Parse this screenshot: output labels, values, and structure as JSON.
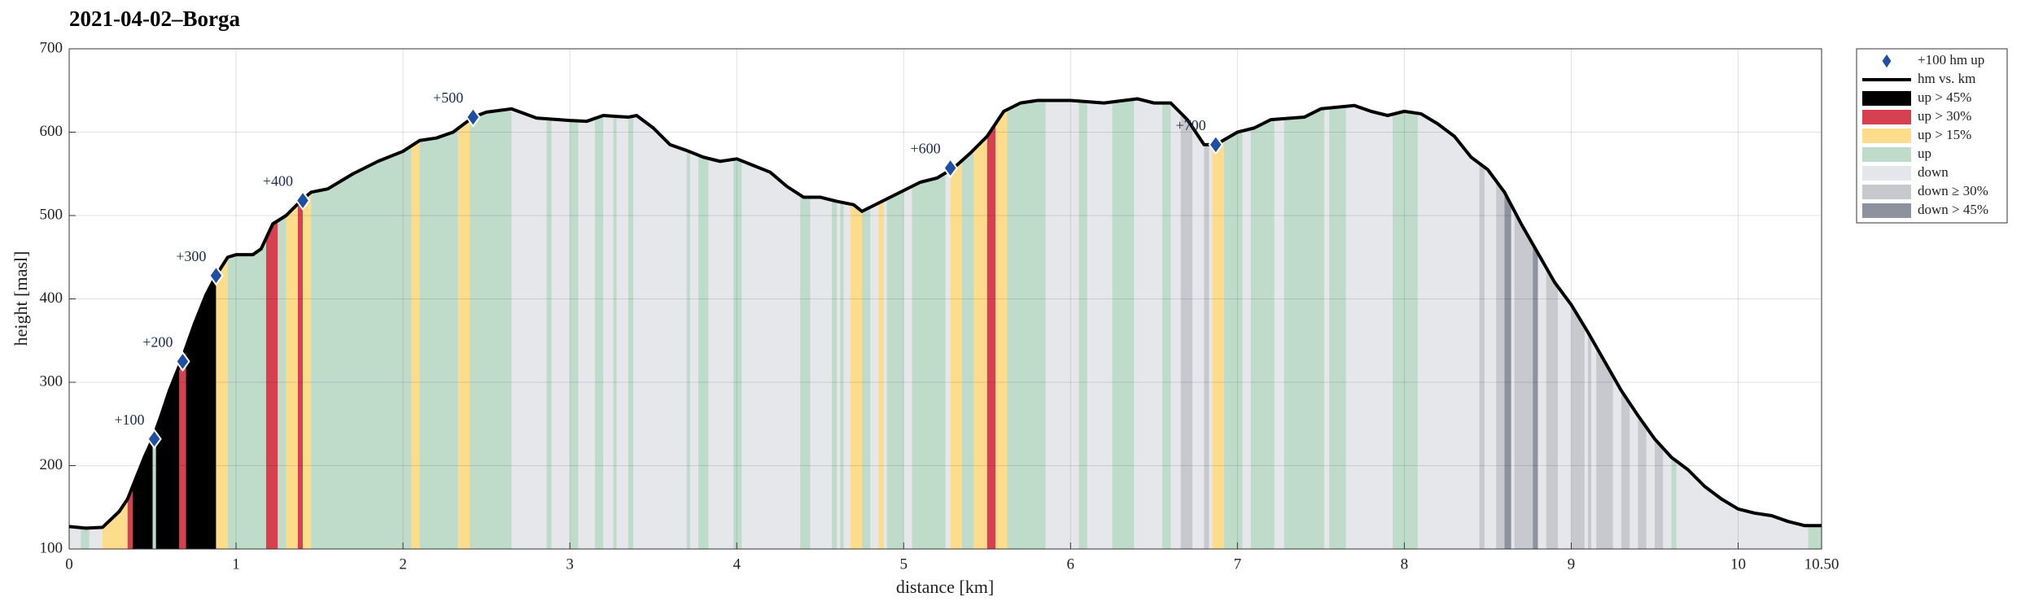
{
  "chart_data": {
    "type": "area",
    "title": "2021-04-02–Borga",
    "xlabel": "distance [km]",
    "ylabel": "height [masl]",
    "x": [
      0,
      0.1,
      0.2,
      0.3,
      0.35,
      0.4,
      0.45,
      0.5,
      0.55,
      0.6,
      0.67,
      0.75,
      0.82,
      0.88,
      0.95,
      1.0,
      1.1,
      1.15,
      1.22,
      1.3,
      1.39,
      1.45,
      1.55,
      1.7,
      1.85,
      2.0,
      2.1,
      2.2,
      2.3,
      2.42,
      2.5,
      2.65,
      2.8,
      3.0,
      3.1,
      3.2,
      3.35,
      3.4,
      3.5,
      3.6,
      3.7,
      3.8,
      3.9,
      4.0,
      4.1,
      4.2,
      4.3,
      4.4,
      4.5,
      4.6,
      4.7,
      4.75,
      4.85,
      5.0,
      5.1,
      5.2,
      5.3,
      5.4,
      5.5,
      5.6,
      5.7,
      5.8,
      6.0,
      6.2,
      6.4,
      6.5,
      6.6,
      6.7,
      6.8,
      6.87,
      7.0,
      7.1,
      7.2,
      7.4,
      7.5,
      7.7,
      7.8,
      7.9,
      8.0,
      8.1,
      8.2,
      8.3,
      8.4,
      8.5,
      8.6,
      8.7,
      8.8,
      8.9,
      9.0,
      9.1,
      9.2,
      9.3,
      9.4,
      9.5,
      9.6,
      9.7,
      9.8,
      9.9,
      10.0,
      10.1,
      10.2,
      10.3,
      10.4,
      10.5
    ],
    "series": [
      {
        "name": "hm vs. km",
        "color": "#000000",
        "values": [
          127,
          125,
          126,
          145,
          160,
          185,
          210,
          232,
          260,
          290,
          325,
          370,
          405,
          428,
          450,
          453,
          453,
          460,
          490,
          500,
          518,
          528,
          532,
          550,
          565,
          577,
          590,
          593,
          600,
          618,
          624,
          628,
          617,
          614,
          613,
          620,
          618,
          620,
          605,
          585,
          578,
          570,
          565,
          568,
          560,
          552,
          535,
          522,
          522,
          517,
          513,
          505,
          515,
          530,
          540,
          545,
          557,
          575,
          595,
          625,
          635,
          638,
          638,
          635,
          640,
          635,
          635,
          615,
          585,
          585,
          600,
          605,
          615,
          618,
          628,
          632,
          625,
          620,
          625,
          622,
          610,
          595,
          570,
          555,
          528,
          490,
          455,
          420,
          393,
          360,
          325,
          290,
          260,
          232,
          210,
          195,
          175,
          160,
          148,
          143,
          140,
          133,
          128,
          128
        ]
      }
    ],
    "markers": {
      "name": "+100 hm up",
      "color": "#1f4fa0",
      "x": [
        0.51,
        0.68,
        0.88,
        1.4,
        2.42,
        5.28,
        6.87
      ],
      "values": [
        232,
        325,
        428,
        518,
        618,
        557,
        585
      ],
      "labels": [
        "+100",
        "+200",
        "+300",
        "+400",
        "+500",
        "+600",
        "+700"
      ]
    },
    "band_classes": [
      {
        "name": "up > 45%",
        "color": "#000000"
      },
      {
        "name": "up > 30%",
        "color": "#d7404f"
      },
      {
        "name": "up > 15%",
        "color": "#fddc8c"
      },
      {
        "name": "up",
        "color": "#bfdcca"
      },
      {
        "name": "down",
        "color": "#e6e7ea"
      },
      {
        "name": "down ≥ 30%",
        "color": "#c7c9cf"
      },
      {
        "name": "down > 45%",
        "color": "#8e929e"
      }
    ],
    "bands": [
      [
        0.07,
        0.12,
        3
      ],
      [
        0.2,
        0.35,
        2
      ],
      [
        0.35,
        0.38,
        1
      ],
      [
        0.38,
        0.5,
        0
      ],
      [
        0.5,
        0.52,
        3
      ],
      [
        0.52,
        0.66,
        0
      ],
      [
        0.66,
        0.7,
        1
      ],
      [
        0.7,
        0.88,
        0
      ],
      [
        0.88,
        0.95,
        2
      ],
      [
        0.95,
        1.18,
        3
      ],
      [
        1.18,
        1.25,
        1
      ],
      [
        1.25,
        1.3,
        3
      ],
      [
        1.3,
        1.37,
        2
      ],
      [
        1.37,
        1.4,
        1
      ],
      [
        1.4,
        1.45,
        2
      ],
      [
        1.45,
        2.05,
        3
      ],
      [
        2.05,
        2.1,
        2
      ],
      [
        2.1,
        2.33,
        3
      ],
      [
        2.33,
        2.4,
        2
      ],
      [
        2.4,
        2.65,
        3
      ],
      [
        2.86,
        2.89,
        3
      ],
      [
        3.0,
        3.05,
        3
      ],
      [
        3.15,
        3.2,
        3
      ],
      [
        3.26,
        3.28,
        3
      ],
      [
        3.35,
        3.38,
        3
      ],
      [
        3.7,
        3.72,
        3
      ],
      [
        3.77,
        3.83,
        3
      ],
      [
        3.98,
        4.03,
        3
      ],
      [
        4.38,
        4.44,
        3
      ],
      [
        4.57,
        4.6,
        3
      ],
      [
        4.62,
        4.64,
        3
      ],
      [
        4.68,
        4.75,
        2
      ],
      [
        4.75,
        4.8,
        3
      ],
      [
        4.85,
        4.88,
        2
      ],
      [
        4.9,
        5.0,
        3
      ],
      [
        5.05,
        5.25,
        3
      ],
      [
        5.28,
        5.35,
        2
      ],
      [
        5.35,
        5.42,
        3
      ],
      [
        5.42,
        5.5,
        2
      ],
      [
        5.5,
        5.55,
        1
      ],
      [
        5.55,
        5.62,
        2
      ],
      [
        5.62,
        5.85,
        3
      ],
      [
        6.05,
        6.1,
        3
      ],
      [
        6.25,
        6.38,
        3
      ],
      [
        6.55,
        6.6,
        3
      ],
      [
        6.66,
        6.73,
        5
      ],
      [
        6.8,
        6.83,
        5
      ],
      [
        6.85,
        6.92,
        2
      ],
      [
        6.92,
        7.03,
        3
      ],
      [
        7.08,
        7.22,
        3
      ],
      [
        7.28,
        7.52,
        3
      ],
      [
        7.55,
        7.65,
        3
      ],
      [
        7.93,
        8.08,
        3
      ],
      [
        8.45,
        8.48,
        5
      ],
      [
        8.55,
        8.6,
        5
      ],
      [
        8.6,
        8.64,
        6
      ],
      [
        8.66,
        8.77,
        5
      ],
      [
        8.77,
        8.8,
        6
      ],
      [
        8.85,
        8.92,
        5
      ],
      [
        9.0,
        9.08,
        5
      ],
      [
        9.1,
        9.12,
        5
      ],
      [
        9.15,
        9.25,
        5
      ],
      [
        9.3,
        9.35,
        5
      ],
      [
        9.4,
        9.45,
        5
      ],
      [
        9.5,
        9.55,
        5
      ],
      [
        9.6,
        9.63,
        3
      ],
      [
        10.42,
        10.5,
        3
      ]
    ],
    "xlim": [
      0,
      10.5
    ],
    "ylim": [
      100,
      700
    ],
    "xticks": [
      0,
      1,
      2,
      3,
      4,
      5,
      6,
      7,
      8,
      9,
      10,
      {
        "value": 10.5,
        "label": "10.50"
      }
    ],
    "yticks": [
      100,
      200,
      300,
      400,
      500,
      600,
      700
    ],
    "grid": true,
    "legend": "outside upper right"
  }
}
